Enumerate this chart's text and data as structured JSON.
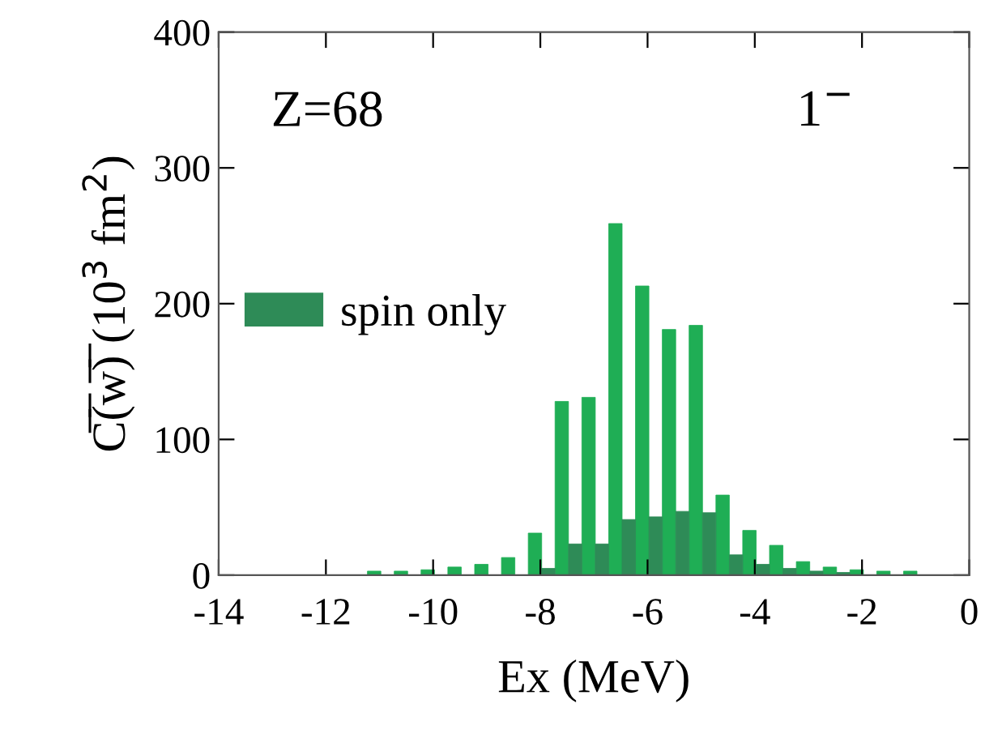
{
  "chart_data": {
    "type": "bar",
    "xlabel": "Ex (MeV)",
    "ylabel": "C̅(̅w̅)̅ (10$^{3}$ fm$^{2}$)",
    "annotations": [
      "Z=68",
      "1$^{−}$"
    ],
    "series": [
      {
        "color": "#1fae55",
        "x": [
          -11.1,
          -10.6,
          -10.1,
          -9.6,
          -9.1,
          -8.6,
          -8.1,
          -7.6,
          -7.1,
          -6.6,
          -6.1,
          -5.6,
          -5.1,
          -4.6,
          -4.1,
          -3.6,
          -3.1,
          -2.6,
          -2.1,
          -1.6,
          -1.1
        ],
        "values": [
          3,
          3,
          4,
          6,
          8,
          13,
          31,
          128,
          131,
          259,
          213,
          181,
          184,
          59,
          33,
          22,
          10,
          6,
          4,
          3,
          3
        ]
      },
      {
        "name": "spin only",
        "color": "#2e8b57",
        "x": [
          -7.85,
          -7.35,
          -6.85,
          -6.35,
          -5.85,
          -5.35,
          -4.85,
          -4.35,
          -3.85,
          -3.35,
          -2.85,
          -2.35
        ],
        "values": [
          5,
          23,
          23,
          41,
          43,
          47,
          46,
          15,
          8,
          5,
          3,
          2
        ]
      }
    ],
    "xlim": [
      -14,
      0
    ],
    "xticks": [
      -14,
      -12,
      -10,
      -8,
      -6,
      -4,
      -2,
      0
    ],
    "ylim": [
      0,
      400
    ],
    "yticks": [
      0,
      100,
      200,
      300,
      400
    ],
    "legend": "center left",
    "grid": false
  }
}
